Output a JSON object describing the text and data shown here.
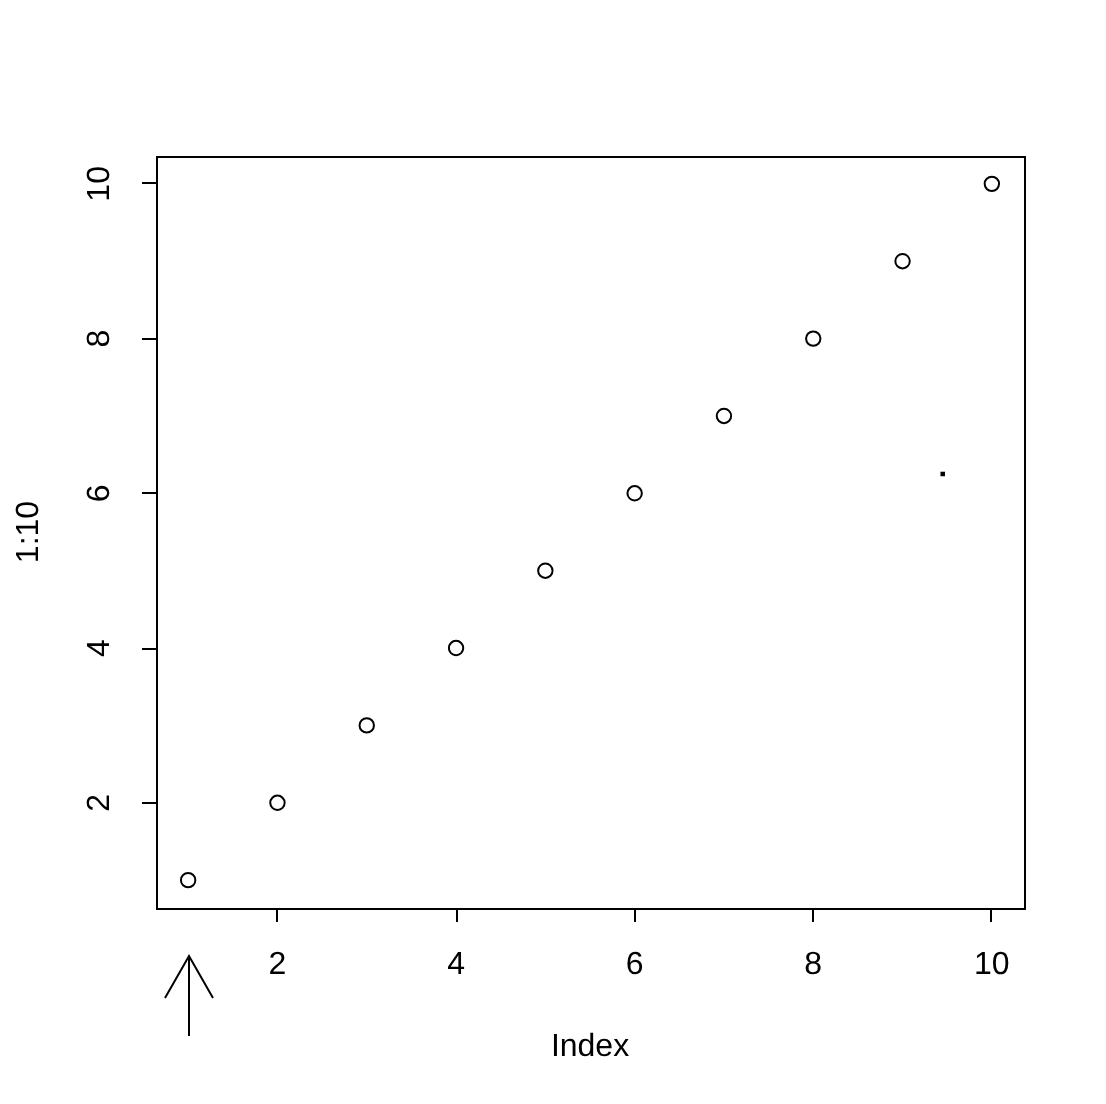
{
  "chart_data": {
    "type": "scatter",
    "xlabel": "Index",
    "ylabel": "1:10",
    "xlim": [
      0.64,
      10.36
    ],
    "ylim": [
      0.64,
      10.36
    ],
    "xticks": [
      2,
      4,
      6,
      8,
      10
    ],
    "yticks": [
      2,
      4,
      6,
      8,
      10
    ],
    "grid": false,
    "legend": false,
    "series": [
      {
        "x": [
          1,
          2,
          3,
          4,
          5,
          6,
          7,
          8,
          9,
          10
        ],
        "values": [
          1,
          2,
          3,
          4,
          5,
          6,
          7,
          8,
          9,
          10
        ],
        "color": "#000000",
        "marker": "circle"
      },
      {
        "x": [
          9.45
        ],
        "values": [
          6.25
        ],
        "color": "#000000",
        "marker": "square"
      }
    ]
  }
}
